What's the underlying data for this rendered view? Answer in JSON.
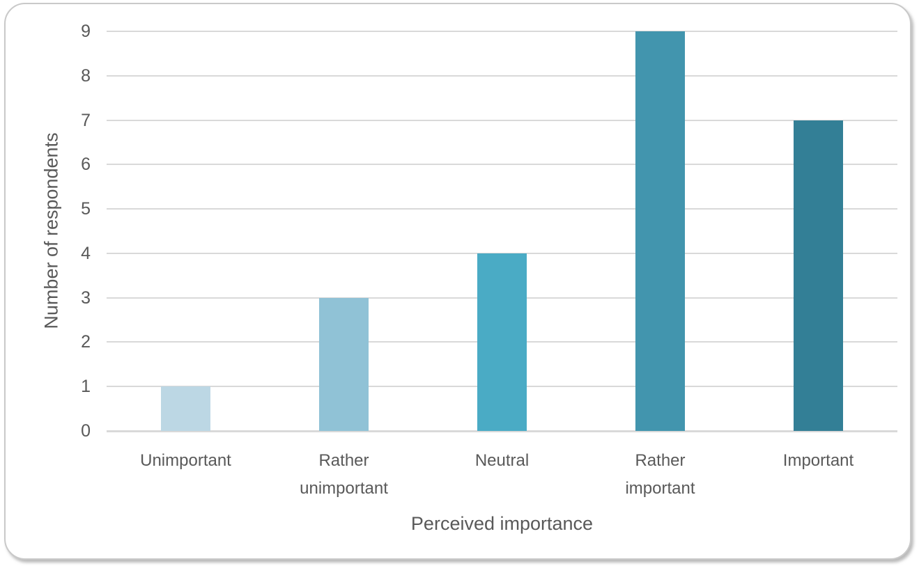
{
  "chart_data": {
    "type": "bar",
    "title": "",
    "categories": [
      "Unimportant",
      "Rather unimportant",
      "Neutral",
      "Rather important",
      "Important"
    ],
    "values": [
      1,
      3,
      4,
      9,
      7
    ],
    "xlabel": "Perceived importance",
    "ylabel": "Number of respondents",
    "ylim": [
      0,
      9
    ],
    "ytick_step": 1,
    "yticks": [
      0,
      1,
      2,
      3,
      4,
      5,
      6,
      7,
      8,
      9
    ],
    "grid": true,
    "legend": "none",
    "bar_colors": [
      "#bcd7e4",
      "#90c2d6",
      "#4aabc5",
      "#4295ae",
      "#337f96"
    ],
    "gridline_color": "#d9d9d9",
    "axis_line_color": "#d6d6d6",
    "text_color": "#595959",
    "frame_background": "#ffffff",
    "frame_border_color": "#c9c9c9"
  }
}
